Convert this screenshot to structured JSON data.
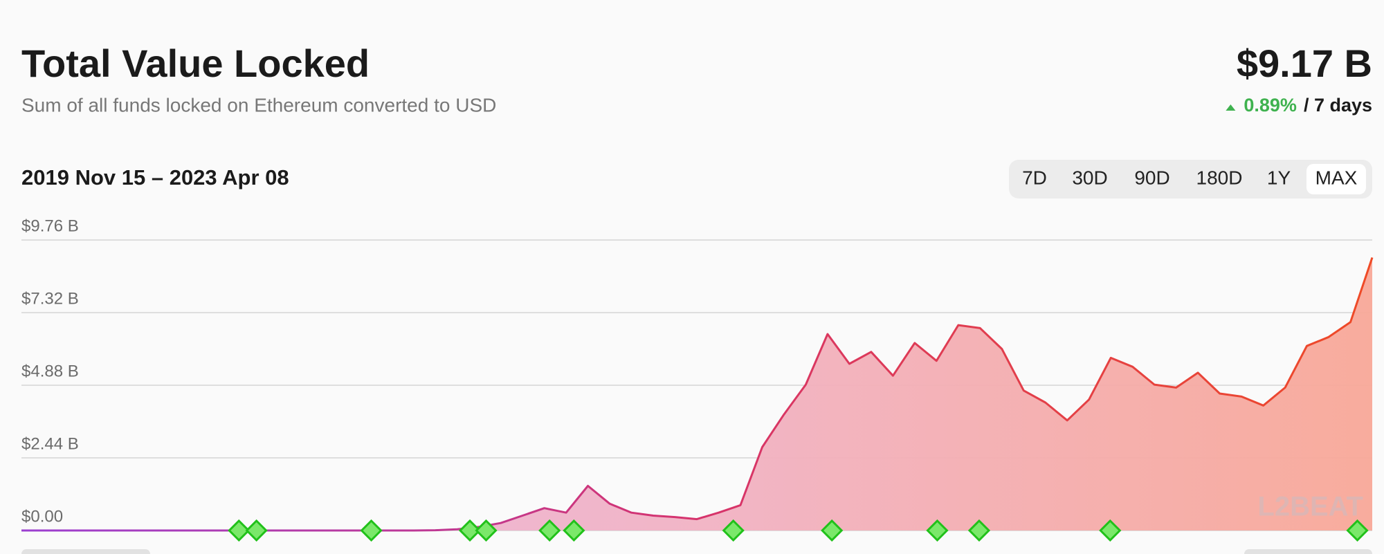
{
  "header": {
    "title": "Total Value Locked",
    "subtitle": "Sum of all funds locked on Ethereum converted to USD",
    "value": "$9.17 B",
    "change": "0.89%",
    "period": "/ 7 days",
    "date_range": "2019 Nov 15 – 2023 Apr 08",
    "ranges": [
      "7D",
      "30D",
      "90D",
      "180D",
      "1Y",
      "MAX"
    ],
    "active_range": "MAX",
    "watermark": "L2BEAT"
  },
  "chart_data": {
    "type": "area",
    "ylim": [
      0,
      9.76
    ],
    "yticks": [
      {
        "value": 0,
        "label": "$0.00"
      },
      {
        "value": 2.44,
        "label": "$2.44 B"
      },
      {
        "value": 4.88,
        "label": "$4.88 B"
      },
      {
        "value": 7.32,
        "label": "$7.32 B"
      },
      {
        "value": 9.76,
        "label": "$9.76 B"
      }
    ],
    "grid": true,
    "line_colors": [
      "#9b3fd1",
      "#d6336c",
      "#ef4a26"
    ],
    "fill_colors": [
      "#eab4de",
      "#f1b2c4",
      "#f8a898"
    ],
    "values": [
      0,
      0,
      0,
      0,
      0,
      0,
      0,
      0,
      0,
      0,
      0,
      0,
      0,
      0,
      0,
      0,
      0,
      0,
      0,
      0.01,
      0.04,
      0.12,
      0.25,
      0.5,
      0.75,
      0.6,
      1.5,
      0.9,
      0.6,
      0.5,
      0.45,
      0.38,
      0.6,
      0.85,
      2.8,
      3.9,
      4.9,
      6.6,
      5.6,
      6.0,
      5.2,
      6.3,
      5.7,
      6.9,
      6.8,
      6.1,
      4.7,
      4.3,
      3.7,
      4.4,
      5.8,
      5.5,
      4.9,
      4.8,
      5.3,
      4.6,
      4.5,
      4.2,
      4.8,
      6.2,
      6.5,
      7.0,
      9.17
    ]
  }
}
